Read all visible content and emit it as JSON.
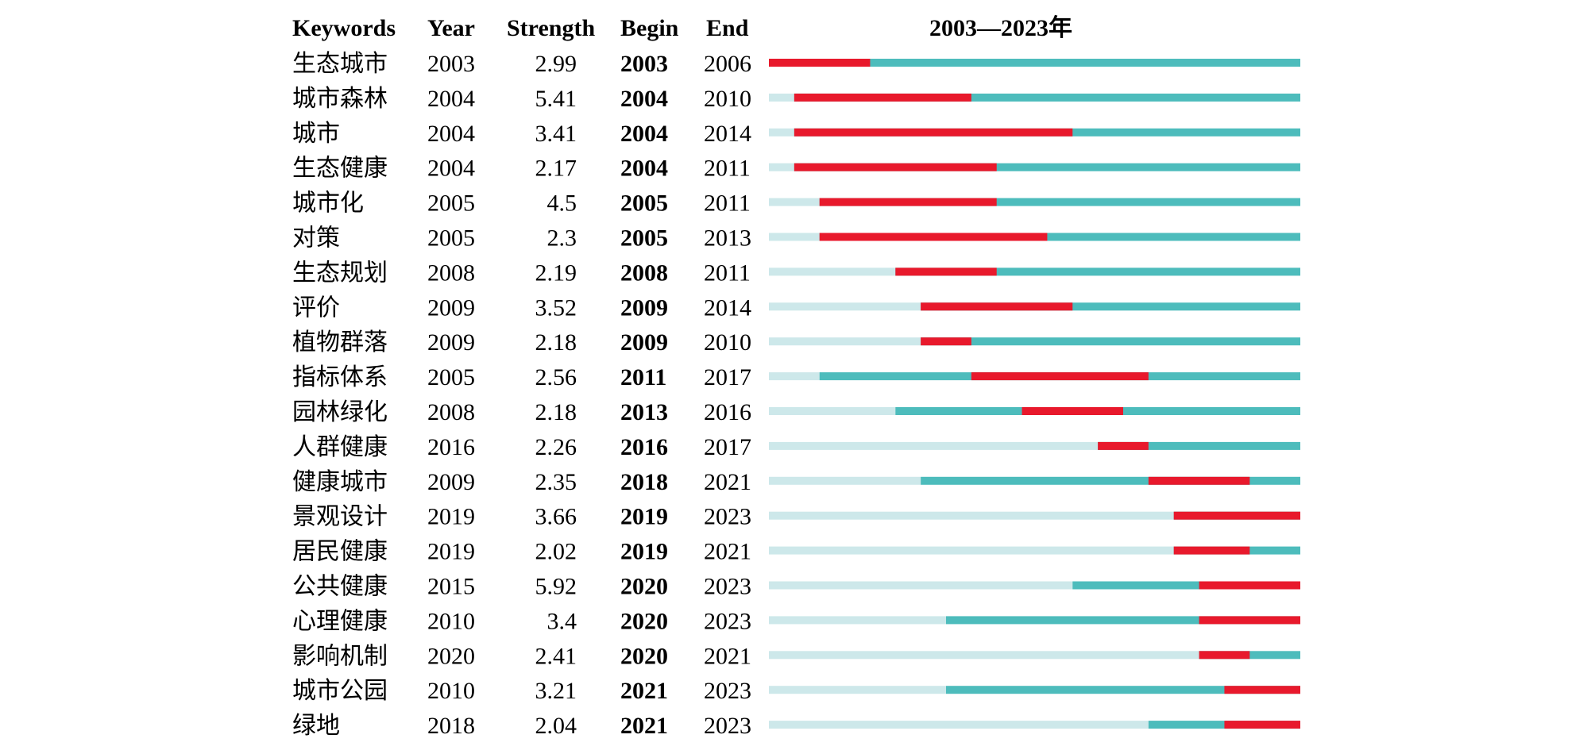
{
  "chart_data": {
    "type": "table",
    "headers": {
      "keywords": "Keywords",
      "year": "Year",
      "strength": "Strength",
      "begin": "Begin",
      "end": "End",
      "range": "2003—2023年"
    },
    "timeline": {
      "start": 2003,
      "end": 2023
    },
    "colors": {
      "burst": "#e8192c",
      "active": "#4dbcbc",
      "inactive": "#cde8ea"
    },
    "rows": [
      {
        "keyword": "生态城市",
        "year": "2003",
        "strength": "2.99",
        "begin": "2003",
        "end": "2006"
      },
      {
        "keyword": "城市森林",
        "year": "2004",
        "strength": "5.41",
        "begin": "2004",
        "end": "2010"
      },
      {
        "keyword": "城市",
        "year": "2004",
        "strength": "3.41",
        "begin": "2004",
        "end": "2014"
      },
      {
        "keyword": "生态健康",
        "year": "2004",
        "strength": "2.17",
        "begin": "2004",
        "end": "2011"
      },
      {
        "keyword": "城市化",
        "year": "2005",
        "strength": "4.5",
        "begin": "2005",
        "end": "2011"
      },
      {
        "keyword": "对策",
        "year": "2005",
        "strength": "2.3",
        "begin": "2005",
        "end": "2013"
      },
      {
        "keyword": "生态规划",
        "year": "2008",
        "strength": "2.19",
        "begin": "2008",
        "end": "2011"
      },
      {
        "keyword": "评价",
        "year": "2009",
        "strength": "3.52",
        "begin": "2009",
        "end": "2014"
      },
      {
        "keyword": "植物群落",
        "year": "2009",
        "strength": "2.18",
        "begin": "2009",
        "end": "2010"
      },
      {
        "keyword": "指标体系",
        "year": "2005",
        "strength": "2.56",
        "begin": "2011",
        "end": "2017"
      },
      {
        "keyword": "园林绿化",
        "year": "2008",
        "strength": "2.18",
        "begin": "2013",
        "end": "2016"
      },
      {
        "keyword": "人群健康",
        "year": "2016",
        "strength": "2.26",
        "begin": "2016",
        "end": "2017"
      },
      {
        "keyword": "健康城市",
        "year": "2009",
        "strength": "2.35",
        "begin": "2018",
        "end": "2021"
      },
      {
        "keyword": "景观设计",
        "year": "2019",
        "strength": "3.66",
        "begin": "2019",
        "end": "2023"
      },
      {
        "keyword": "居民健康",
        "year": "2019",
        "strength": "2.02",
        "begin": "2019",
        "end": "2021"
      },
      {
        "keyword": "公共健康",
        "year": "2015",
        "strength": "5.92",
        "begin": "2020",
        "end": "2023"
      },
      {
        "keyword": "心理健康",
        "year": "2010",
        "strength": "3.4",
        "begin": "2020",
        "end": "2023"
      },
      {
        "keyword": "影响机制",
        "year": "2020",
        "strength": "2.41",
        "begin": "2020",
        "end": "2021"
      },
      {
        "keyword": "城市公园",
        "year": "2010",
        "strength": "3.21",
        "begin": "2021",
        "end": "2023"
      },
      {
        "keyword": "绿地",
        "year": "2018",
        "strength": "2.04",
        "begin": "2021",
        "end": "2023"
      }
    ]
  }
}
